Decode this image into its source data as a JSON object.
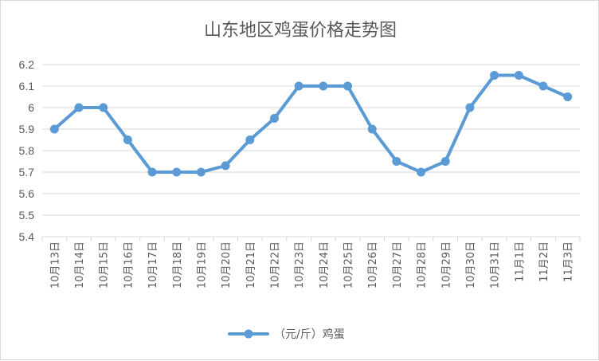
{
  "chart_data": {
    "type": "line",
    "title": "山东地区鸡蛋价格走势图",
    "xlabel": "",
    "ylabel": "",
    "categories": [
      "10月13日",
      "10月14日",
      "10月15日",
      "10月16日",
      "10月17日",
      "10月18日",
      "10月19日",
      "10月20日",
      "10月21日",
      "10月22日",
      "10月23日",
      "10月24日",
      "10月25日",
      "10月26日",
      "10月27日",
      "10月28日",
      "10月29日",
      "10月30日",
      "10月31日",
      "11月1日",
      "11月2日",
      "11月3日"
    ],
    "series": [
      {
        "name": "（元/斤）鸡蛋",
        "color": "#5b9bd5",
        "values": [
          5.9,
          6.0,
          6.0,
          5.85,
          5.7,
          5.7,
          5.7,
          5.73,
          5.85,
          5.95,
          6.1,
          6.1,
          6.1,
          5.9,
          5.75,
          5.7,
          5.75,
          6.0,
          6.15,
          6.15,
          6.1,
          6.05
        ]
      }
    ],
    "ylim": [
      5.4,
      6.2
    ],
    "yticks": [
      "5.4",
      "5.5",
      "5.6",
      "5.7",
      "5.8",
      "5.9",
      "6",
      "6.1",
      "6.2"
    ],
    "grid": true,
    "legend_position": "bottom"
  }
}
